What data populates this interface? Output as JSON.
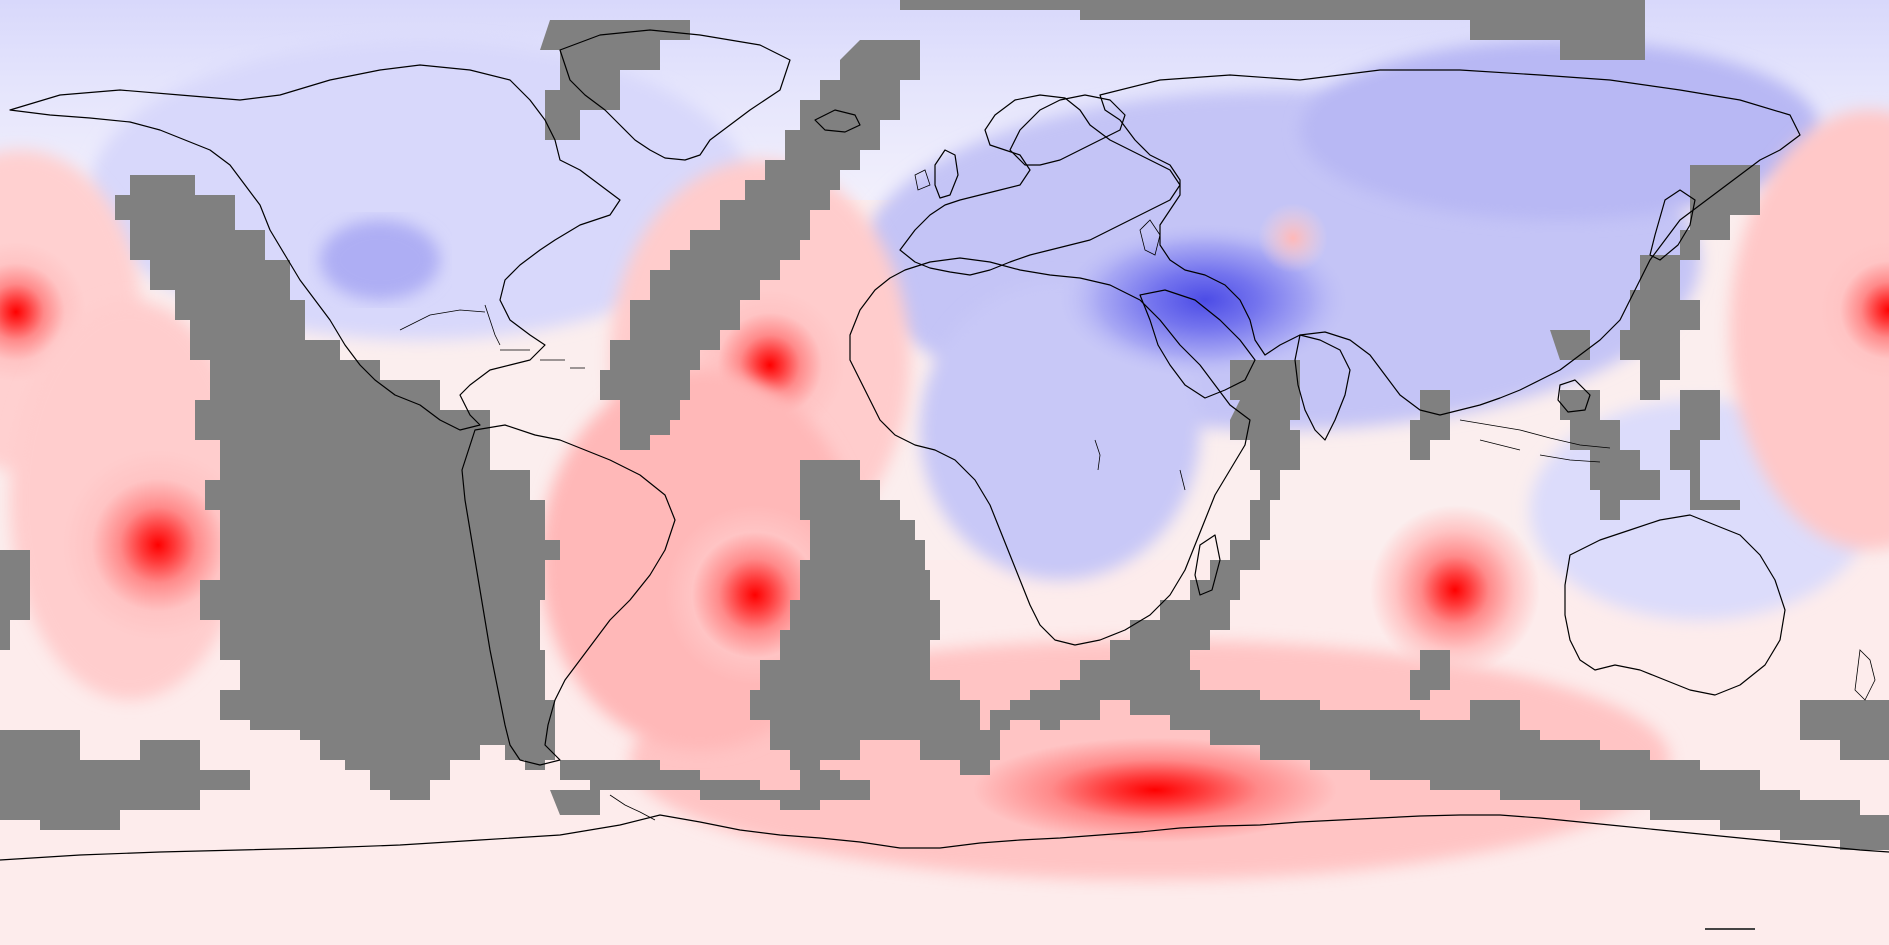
{
  "map": {
    "projection": "equirectangular",
    "field_colors": {
      "strong_positive": "#ff0000",
      "positive": "#ff9999",
      "weak_positive": "#ffe0e0",
      "neutral": "#f6f4fc",
      "weak_negative": "#dcdcfc",
      "negative": "#9c9cf4",
      "strong_negative": "#5050e8",
      "missing_mask": "#808080"
    },
    "continents": [
      "north-america",
      "greenland",
      "south-america",
      "europe",
      "africa",
      "asia",
      "australia",
      "antarctica"
    ],
    "hotspots": [
      {
        "name": "central-pacific-west",
        "sign": "positive"
      },
      {
        "name": "east-pacific",
        "sign": "positive"
      },
      {
        "name": "north-atlantic",
        "sign": "positive"
      },
      {
        "name": "brazil-atlantic",
        "sign": "positive"
      },
      {
        "name": "indian-ocean-west-australia",
        "sign": "positive"
      },
      {
        "name": "southern-ocean",
        "sign": "positive"
      },
      {
        "name": "west-pacific-edge",
        "sign": "positive"
      },
      {
        "name": "central-asia",
        "sign": "positive"
      },
      {
        "name": "arabia-iran",
        "sign": "negative"
      }
    ]
  }
}
